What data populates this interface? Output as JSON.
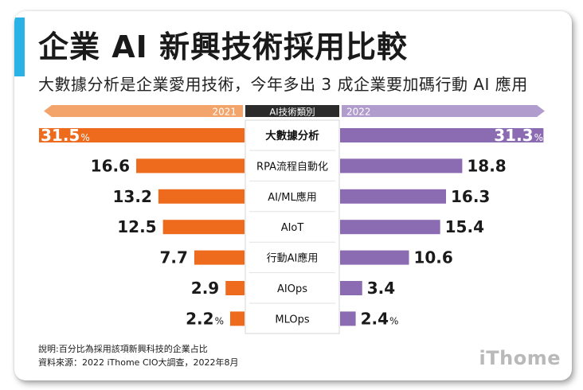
{
  "header": {
    "title": "企業 AI 新興技術採用比較",
    "subtitle": "大數據分析是企業愛用技術，今年多出 3 成企業要加碼行動 AI 應用"
  },
  "footer": {
    "note": "說明:百分比為採用該項新興科技的企業占比",
    "source": "資料來源：2022 iThome CIO大調查，2022年8月",
    "logo": "iThome"
  },
  "colors": {
    "left_bar": "#ee6a1c",
    "left_header": "#f2a46a",
    "right_bar": "#8b6bb2",
    "right_header": "#b19cce",
    "center_header": "#2b2b2b",
    "accent": "#2ab1e6"
  },
  "chart_data": {
    "type": "bar",
    "layout": "butterfly",
    "category_header": "AI技術類別",
    "categories": [
      "大數據分析",
      "RPA流程自動化",
      "AI/ML應用",
      "AIoT",
      "行動AI應用",
      "AIOps",
      "MLOps"
    ],
    "series": [
      {
        "name": "2021",
        "values": [
          31.5,
          16.6,
          13.2,
          12.5,
          7.7,
          2.9,
          2.2
        ]
      },
      {
        "name": "2022",
        "values": [
          31.3,
          18.8,
          16.3,
          15.4,
          10.6,
          3.4,
          2.4
        ]
      }
    ],
    "value_labels_left": [
      "31.5",
      "16.6",
      "13.2",
      "12.5",
      "7.7",
      "2.9",
      "2.2"
    ],
    "value_labels_right": [
      "31.3",
      "18.8",
      "16.3",
      "15.4",
      "10.6",
      "3.4",
      "2.4"
    ],
    "percent_sign": "%",
    "percent_rows": [
      0,
      6
    ],
    "unit": "%"
  }
}
